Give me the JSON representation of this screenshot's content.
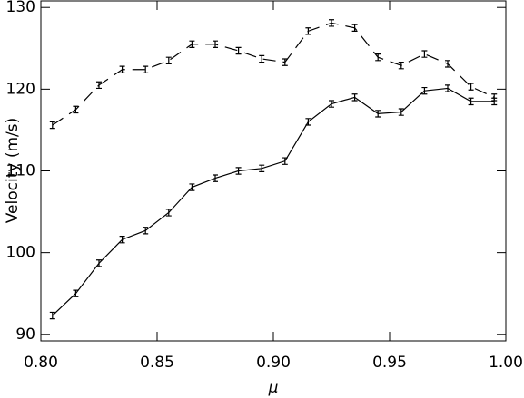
{
  "chart_data": {
    "type": "line",
    "x_label": "μ",
    "y_label": "Velocity (m/s)",
    "x": [
      0.805,
      0.815,
      0.825,
      0.835,
      0.845,
      0.855,
      0.865,
      0.875,
      0.885,
      0.895,
      0.905,
      0.915,
      0.925,
      0.935,
      0.945,
      0.955,
      0.965,
      0.975,
      0.985,
      0.995
    ],
    "series": [
      {
        "color": "#000000",
        "linestyle": "solid",
        "values": [
          92.3,
          95.0,
          98.7,
          101.6,
          102.7,
          104.9,
          108.0,
          109.1,
          110.0,
          110.3,
          111.2,
          116.0,
          118.2,
          119.0,
          117.0,
          117.2,
          119.8,
          120.1,
          118.5,
          118.5
        ],
        "errors": [
          0.4,
          0.4,
          0.4,
          0.4,
          0.4,
          0.4,
          0.4,
          0.4,
          0.4,
          0.4,
          0.4,
          0.4,
          0.4,
          0.4,
          0.4,
          0.4,
          0.4,
          0.4,
          0.4,
          0.4
        ]
      },
      {
        "color": "#000000",
        "linestyle": "dashed",
        "values": [
          115.6,
          117.5,
          120.5,
          122.4,
          122.4,
          123.5,
          125.5,
          125.5,
          124.7,
          123.7,
          123.3,
          127.1,
          128.1,
          127.5,
          123.9,
          122.9,
          124.3,
          123.1,
          120.3,
          119.0
        ],
        "errors": [
          0.4,
          0.4,
          0.4,
          0.4,
          0.4,
          0.4,
          0.4,
          0.4,
          0.4,
          0.4,
          0.4,
          0.4,
          0.4,
          0.4,
          0.4,
          0.4,
          0.4,
          0.4,
          0.4,
          0.4
        ]
      }
    ],
    "xlim": [
      0.8,
      1.0
    ],
    "xticks": [
      {
        "value": 0.8,
        "label": "0.80"
      },
      {
        "value": 0.85,
        "label": "0.85"
      },
      {
        "value": 0.9,
        "label": "0.90"
      },
      {
        "value": 0.95,
        "label": "0.95"
      },
      {
        "value": 1.0,
        "label": "1.00"
      }
    ],
    "ylim": [
      89.2,
      130.8
    ],
    "yticks": [
      90,
      100,
      110,
      120,
      130
    ]
  }
}
